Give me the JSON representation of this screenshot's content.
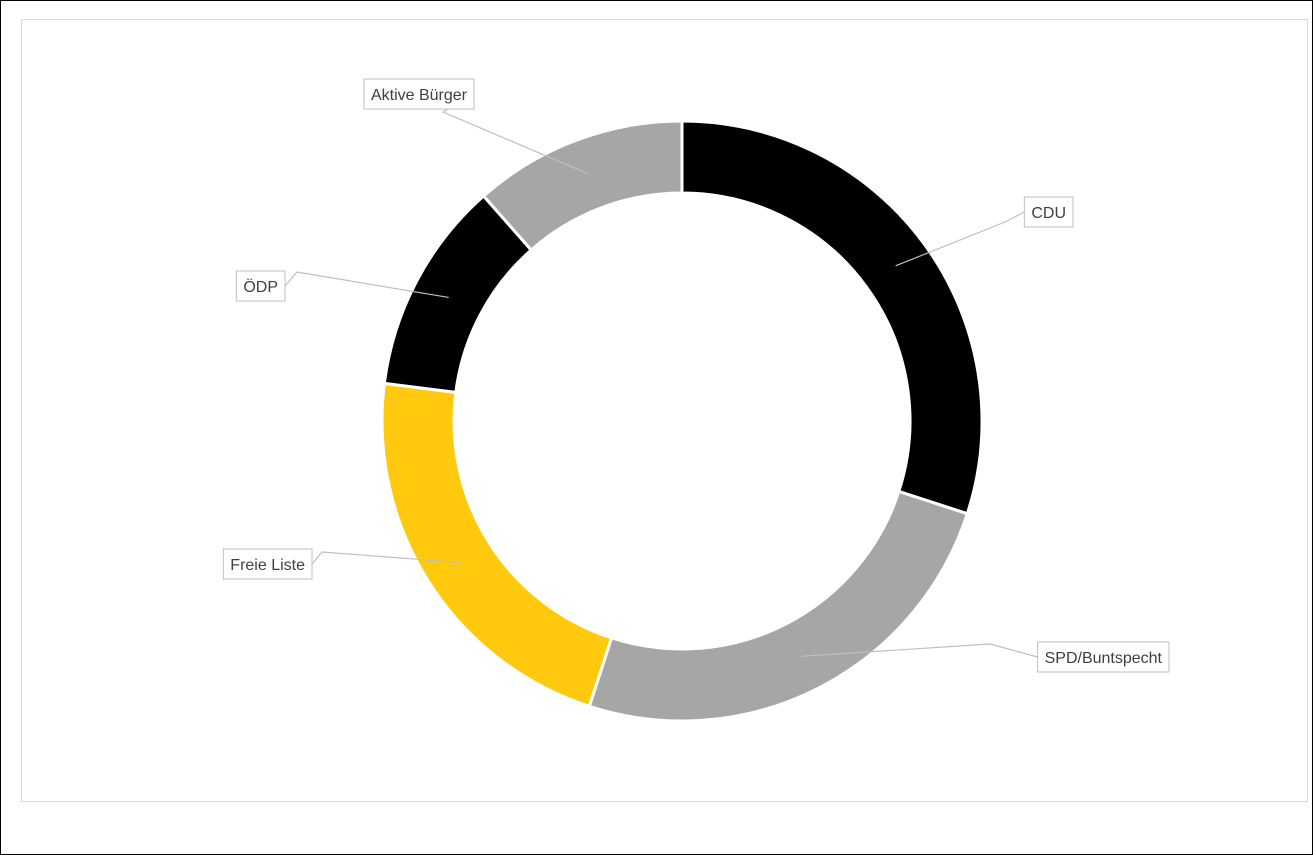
{
  "chart_data": {
    "type": "pie",
    "subtype": "doughnut",
    "title": "",
    "categories": [
      "CDU",
      "SPD/Buntspecht",
      "Freie Liste",
      "ÖDP",
      "Aktive Bürger"
    ],
    "values": [
      30,
      25,
      22,
      11.5,
      11.5
    ],
    "unit": "%",
    "colors": [
      "#000000",
      "#a6a6a6",
      "#ffc90e",
      "#000000",
      "#a6a6a6"
    ],
    "data_labels": [
      "CDU",
      "SPD/Buntspecht",
      "Freie Liste",
      "ÖDP",
      "Aktive Bürger"
    ],
    "legend": "none",
    "start_angle": "12 o'clock",
    "direction": "clockwise"
  }
}
